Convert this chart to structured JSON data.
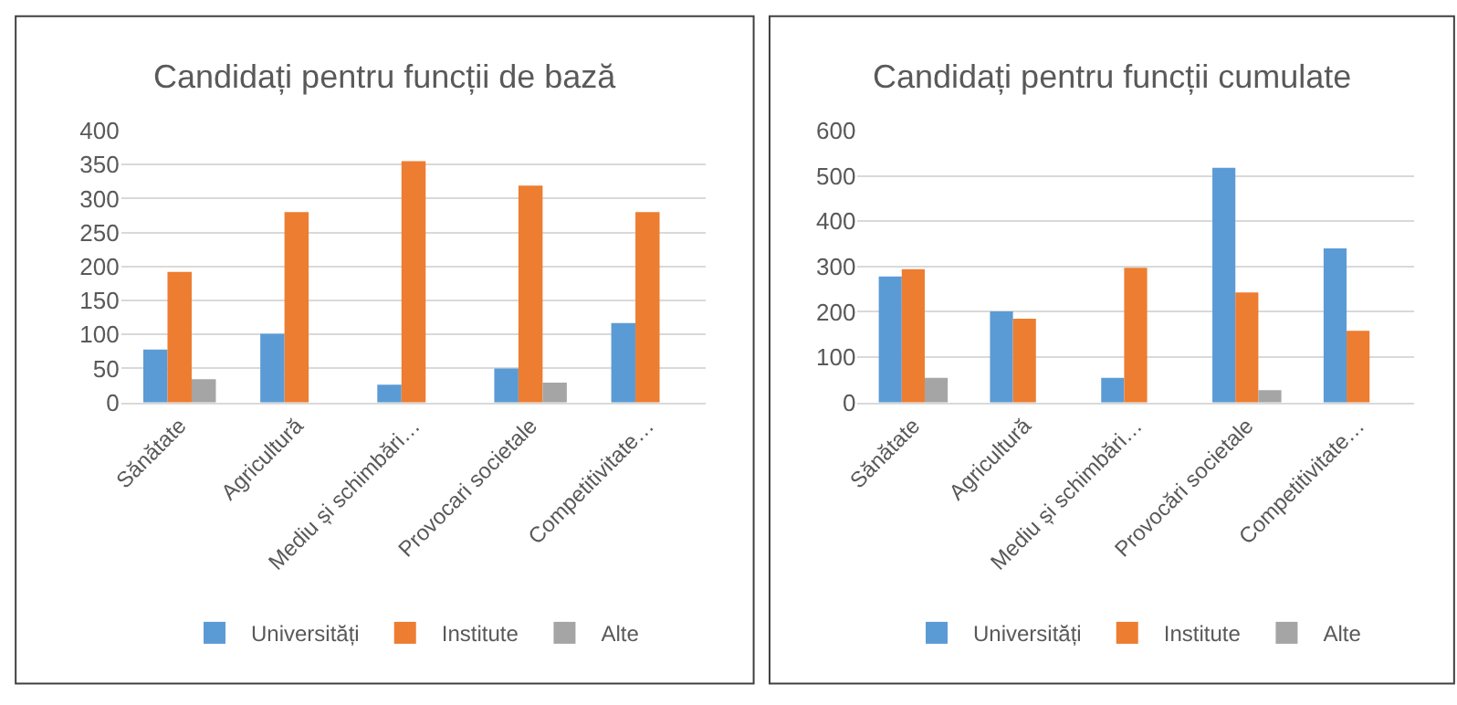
{
  "chart_data": [
    {
      "type": "bar",
      "title": "Candidați pentru funcții de bază",
      "categories": [
        "Sănătate",
        "Agricultură",
        "Mediu și schimbări…",
        "Provocari societale",
        "Competitivitate…"
      ],
      "series": [
        {
          "name": "Universități",
          "color": "#5b9bd5",
          "values": [
            78,
            101,
            26,
            50,
            117
          ]
        },
        {
          "name": "Institute",
          "color": "#ed7d31",
          "values": [
            192,
            280,
            355,
            319,
            280
          ]
        },
        {
          "name": "Alte",
          "color": "#a5a5a5",
          "values": [
            34,
            null,
            null,
            29,
            null
          ]
        }
      ],
      "ylim": [
        0,
        400
      ],
      "yticks": [
        0,
        50,
        100,
        150,
        200,
        250,
        300,
        350,
        400
      ],
      "grid": "y",
      "legend": "bottom"
    },
    {
      "type": "bar",
      "title": "Candidați pentru funcții cumulate",
      "categories": [
        "Sănătate",
        "Agricultură",
        "Mediu și schimbări…",
        "Provocări societale",
        "Competitivitate…"
      ],
      "series": [
        {
          "name": "Universități",
          "color": "#5b9bd5",
          "values": [
            278,
            201,
            54,
            518,
            340
          ]
        },
        {
          "name": "Institute",
          "color": "#ed7d31",
          "values": [
            294,
            185,
            297,
            243,
            158
          ]
        },
        {
          "name": "Alte",
          "color": "#a5a5a5",
          "values": [
            54,
            null,
            null,
            27,
            null
          ]
        }
      ],
      "ylim": [
        0,
        600
      ],
      "yticks": [
        0,
        100,
        200,
        300,
        400,
        500,
        600
      ],
      "grid": "y",
      "legend": "bottom"
    }
  ]
}
